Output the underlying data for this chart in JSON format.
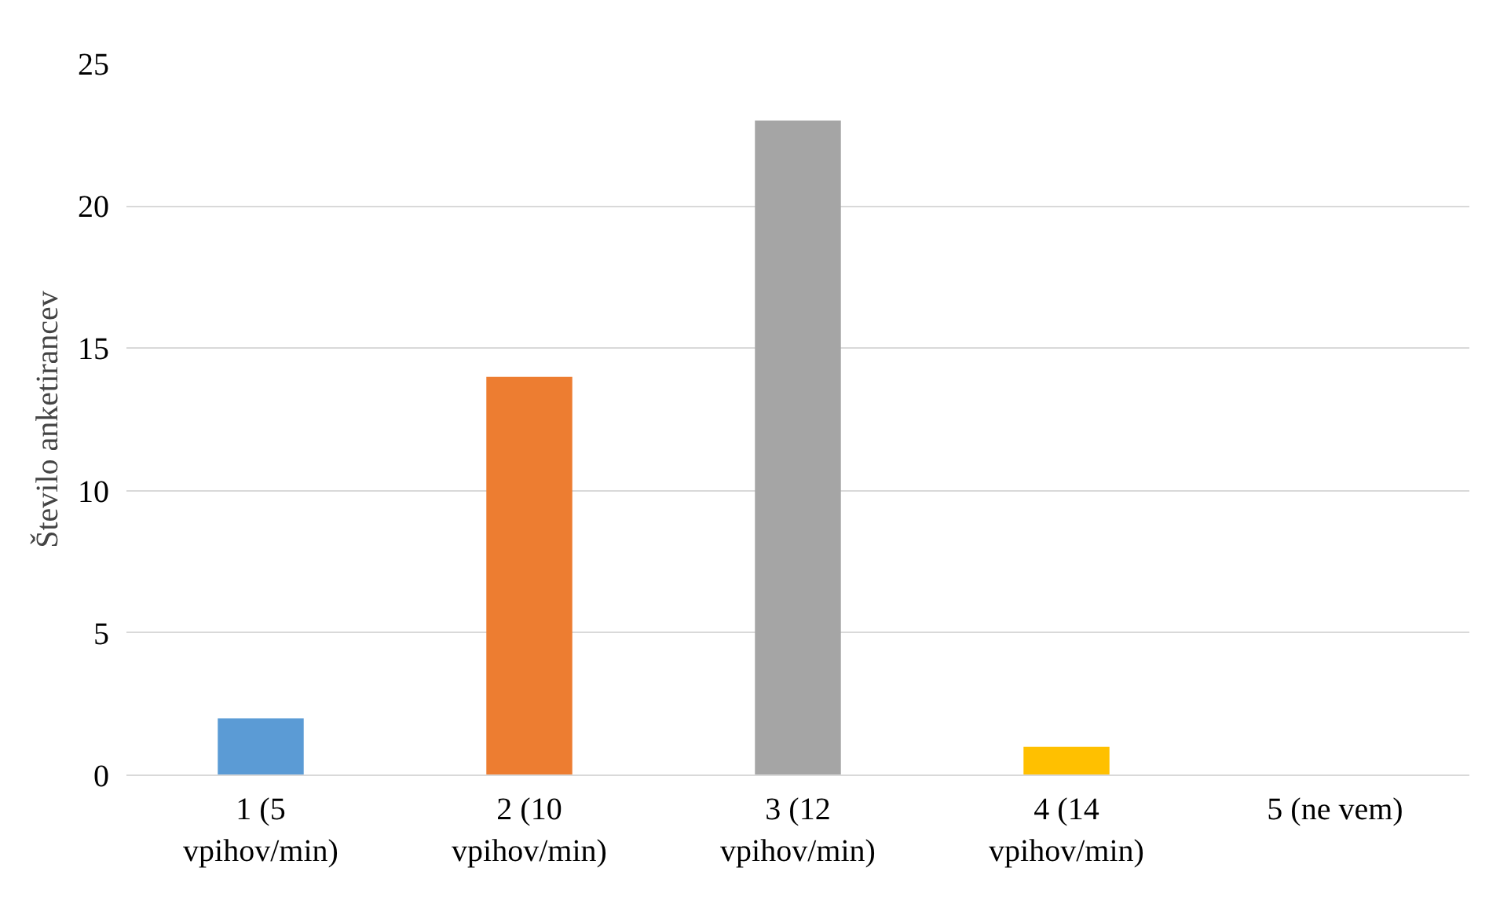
{
  "chart_data": {
    "type": "bar",
    "ylabel": "Število anketirancev",
    "categories": [
      "1 (5 vpihov/min)",
      "2 (10 vpihov/min)",
      "3 (12 vpihov/min)",
      "4 (14 vpihov/min)",
      "5 (ne vem)"
    ],
    "values": [
      2,
      14,
      23,
      1,
      0
    ],
    "colors": [
      "#5b9bd5",
      "#ed7d31",
      "#a5a5a5",
      "#ffc000",
      "#4472c4"
    ],
    "ylim": [
      0,
      25
    ],
    "yticks": [
      0,
      5,
      10,
      15,
      20,
      25
    ],
    "grid": "y"
  }
}
